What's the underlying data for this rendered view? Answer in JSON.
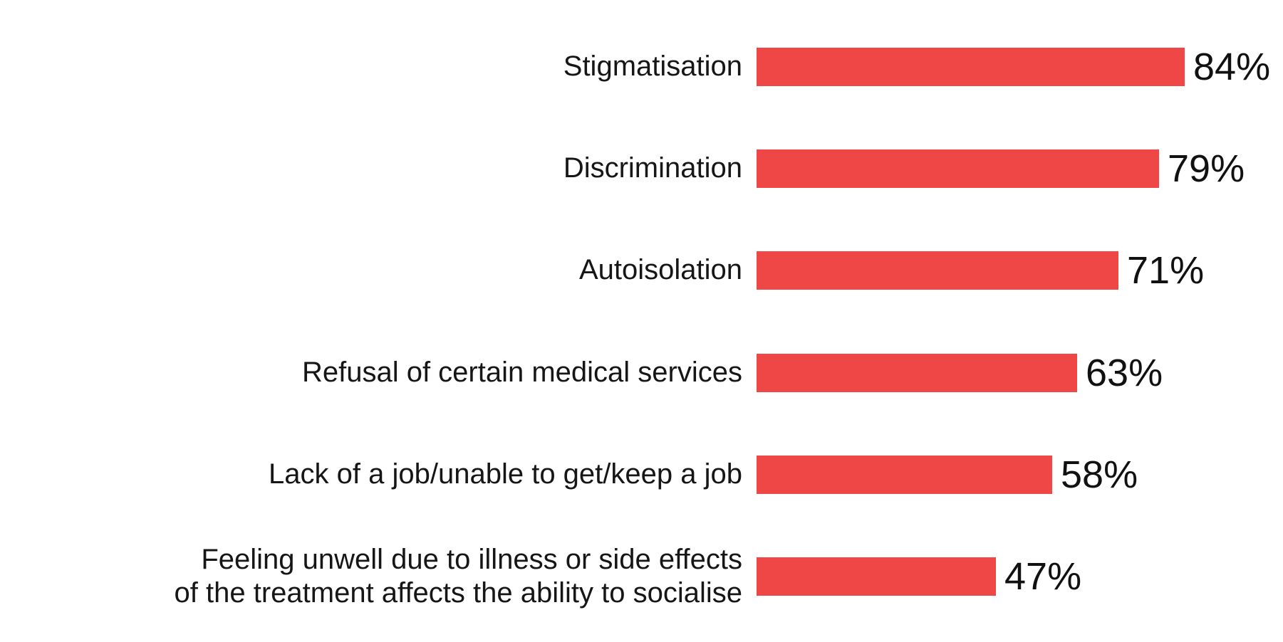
{
  "chart_data": {
    "type": "bar",
    "orientation": "horizontal",
    "title": "",
    "xlabel": "",
    "ylabel": "",
    "grid": false,
    "legend": false,
    "axis_shown": false,
    "value_range": [
      0,
      100
    ],
    "bar_color": "#ef4746",
    "text_color": "#161616",
    "background_color": "#ffffff",
    "categories": [
      "Stigmatisation",
      "Discrimination",
      "Autoisolation",
      "Refusal of certain medical services",
      "Lack of a job/unable to get/keep a job",
      "Feeling unwell due to illness or side effects\nof the treatment affects the ability to socialise"
    ],
    "values": [
      84,
      79,
      71,
      63,
      58,
      47
    ],
    "value_labels": [
      "84%",
      "79%",
      "71%",
      "63%",
      "58%",
      "47%"
    ]
  }
}
